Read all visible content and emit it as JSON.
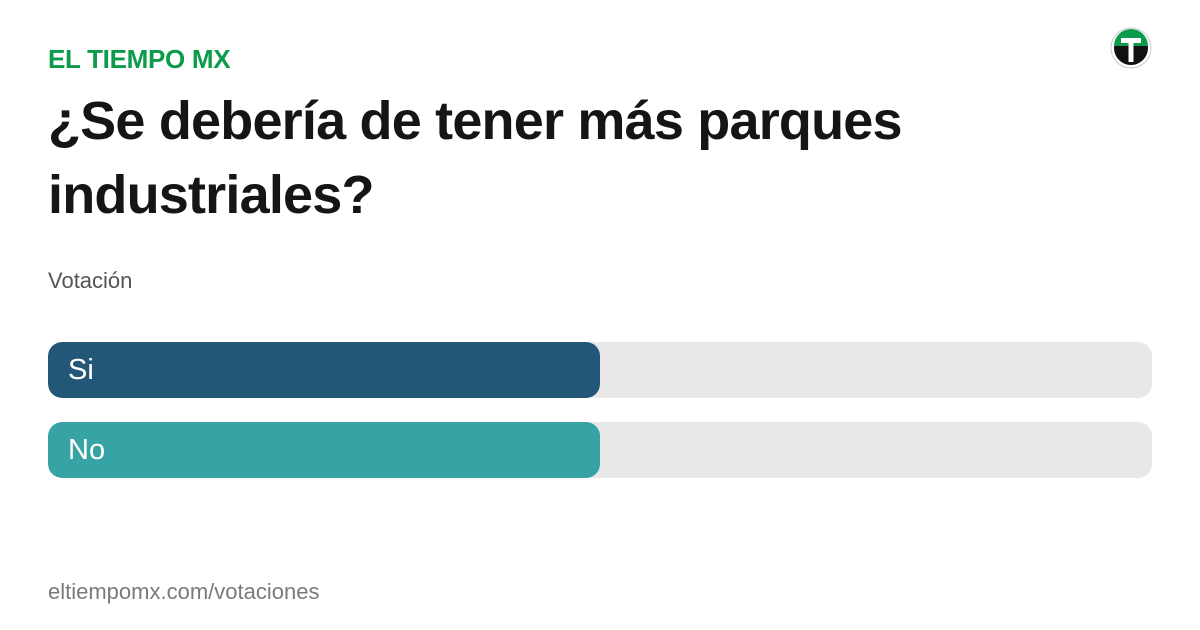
{
  "chart_data": {
    "type": "bar",
    "brand": "EL TIEMPO MX",
    "title": "¿Se debería de tener más parques industriales?",
    "subtitle": "Votación",
    "footer": "eltiempomx.com/votaciones",
    "categories": [
      "Si",
      "No"
    ],
    "values": [
      50,
      50
    ],
    "colors": [
      "#235778",
      "#37a3a4"
    ],
    "xlim": [
      0,
      100
    ]
  }
}
